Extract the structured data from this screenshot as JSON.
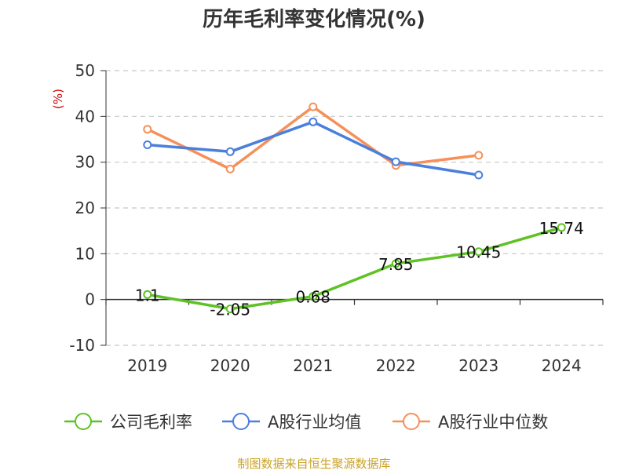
{
  "chart_data": {
    "type": "line",
    "title": "历年毛利率变化情况(%)",
    "y_unit": "(%)",
    "categories": [
      "2019",
      "2020",
      "2021",
      "2022",
      "2023",
      "2024"
    ],
    "ylim": [
      -10,
      50
    ],
    "yticks": [
      "-10",
      "0",
      "10",
      "20",
      "30",
      "40",
      "50"
    ],
    "grid": true,
    "legend_position": "bottom",
    "series": [
      {
        "name": "公司毛利率",
        "color": "#5ec224",
        "values": [
          1.1,
          -2.05,
          0.68,
          7.85,
          10.45,
          15.74
        ],
        "labels": [
          "1.1",
          "-2.05",
          "0.68",
          "7.85",
          "10.45",
          "15.74"
        ]
      },
      {
        "name": "A股行业均值",
        "color": "#4a7fdc",
        "values": [
          33.8,
          32.3,
          38.8,
          30.1,
          27.2,
          null
        ]
      },
      {
        "name": "A股行业中位数",
        "color": "#f5905a",
        "values": [
          37.2,
          28.5,
          42.1,
          29.3,
          31.5,
          null
        ]
      }
    ]
  },
  "footer": {
    "source": "制图数据来自恒生聚源数据库"
  }
}
